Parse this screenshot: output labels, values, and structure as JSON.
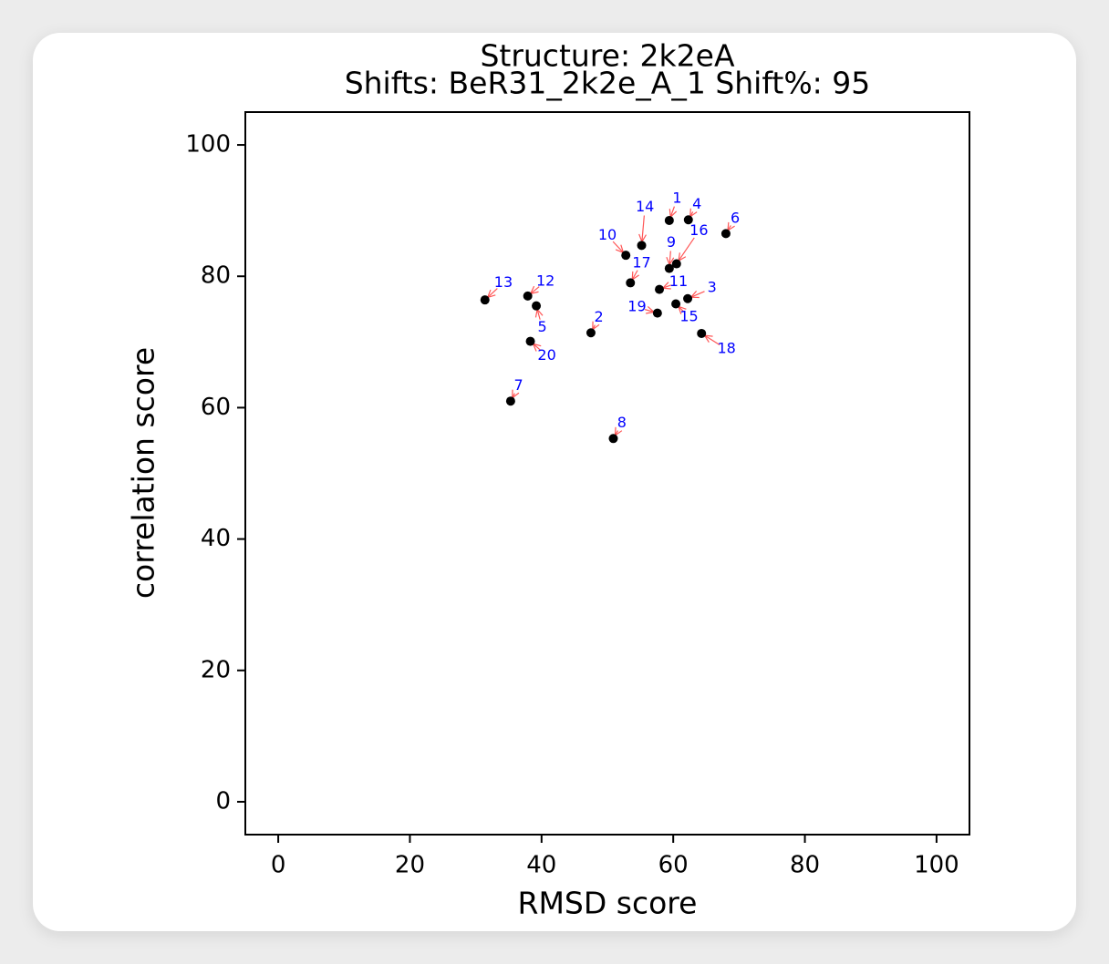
{
  "chart_data": {
    "type": "scatter",
    "title": "Structure: 2k2eA",
    "subtitle": "Shifts: BeR31_2k2e_A_1 Shift%: 95",
    "xlabel": "RMSD score",
    "ylabel": "correlation score",
    "xlim": [
      -5,
      105
    ],
    "ylim": [
      -5,
      105
    ],
    "xticks": [
      "0",
      "20",
      "40",
      "60",
      "80",
      "100"
    ],
    "yticks": [
      "0",
      "20",
      "40",
      "60",
      "80",
      "100"
    ],
    "grid": false,
    "colors": {
      "point": "#000000",
      "label": "#0000ff",
      "arrow": "#ff5555",
      "frame": "#000000"
    },
    "points": [
      {
        "label": "1",
        "x": 59.4,
        "y": 88.5,
        "ldx": 1.2,
        "ldy": 3.3
      },
      {
        "label": "2",
        "x": 47.5,
        "y": 71.4,
        "ldx": 1.2,
        "ldy": 2.3
      },
      {
        "label": "3",
        "x": 62.2,
        "y": 76.6,
        "ldx": 3.7,
        "ldy": 1.6
      },
      {
        "label": "4",
        "x": 62.3,
        "y": 88.6,
        "ldx": 1.3,
        "ldy": 2.3
      },
      {
        "label": "5",
        "x": 39.2,
        "y": 75.5,
        "ldx": 0.9,
        "ldy": -3.3
      },
      {
        "label": "6",
        "x": 68.0,
        "y": 86.5,
        "ldx": 1.4,
        "ldy": 2.3
      },
      {
        "label": "7",
        "x": 35.3,
        "y": 61.0,
        "ldx": 1.2,
        "ldy": 2.3
      },
      {
        "label": "8",
        "x": 50.9,
        "y": 55.3,
        "ldx": 1.3,
        "ldy": 2.3
      },
      {
        "label": "9",
        "x": 59.4,
        "y": 81.2,
        "ldx": 0.3,
        "ldy": 3.9
      },
      {
        "label": "10",
        "x": 52.8,
        "y": 83.2,
        "ldx": -2.8,
        "ldy": 3.0
      },
      {
        "label": "11",
        "x": 57.9,
        "y": 78.0,
        "ldx": 2.9,
        "ldy": 1.1
      },
      {
        "label": "12",
        "x": 37.9,
        "y": 77.0,
        "ldx": 2.7,
        "ldy": 2.2
      },
      {
        "label": "13",
        "x": 31.4,
        "y": 76.4,
        "ldx": 2.8,
        "ldy": 2.6
      },
      {
        "label": "14",
        "x": 55.2,
        "y": 84.7,
        "ldx": 0.5,
        "ldy": 5.8
      },
      {
        "label": "15",
        "x": 60.4,
        "y": 75.8,
        "ldx": 2.0,
        "ldy": -2.0
      },
      {
        "label": "16",
        "x": 60.5,
        "y": 81.9,
        "ldx": 3.4,
        "ldy": 5.0
      },
      {
        "label": "17",
        "x": 53.5,
        "y": 79.0,
        "ldx": 1.7,
        "ldy": 3.0
      },
      {
        "label": "18",
        "x": 64.3,
        "y": 71.3,
        "ldx": 3.8,
        "ldy": -2.4
      },
      {
        "label": "19",
        "x": 57.6,
        "y": 74.4,
        "ldx": -3.1,
        "ldy": 0.9
      },
      {
        "label": "20",
        "x": 38.3,
        "y": 70.1,
        "ldx": 2.5,
        "ldy": -2.2
      }
    ]
  }
}
